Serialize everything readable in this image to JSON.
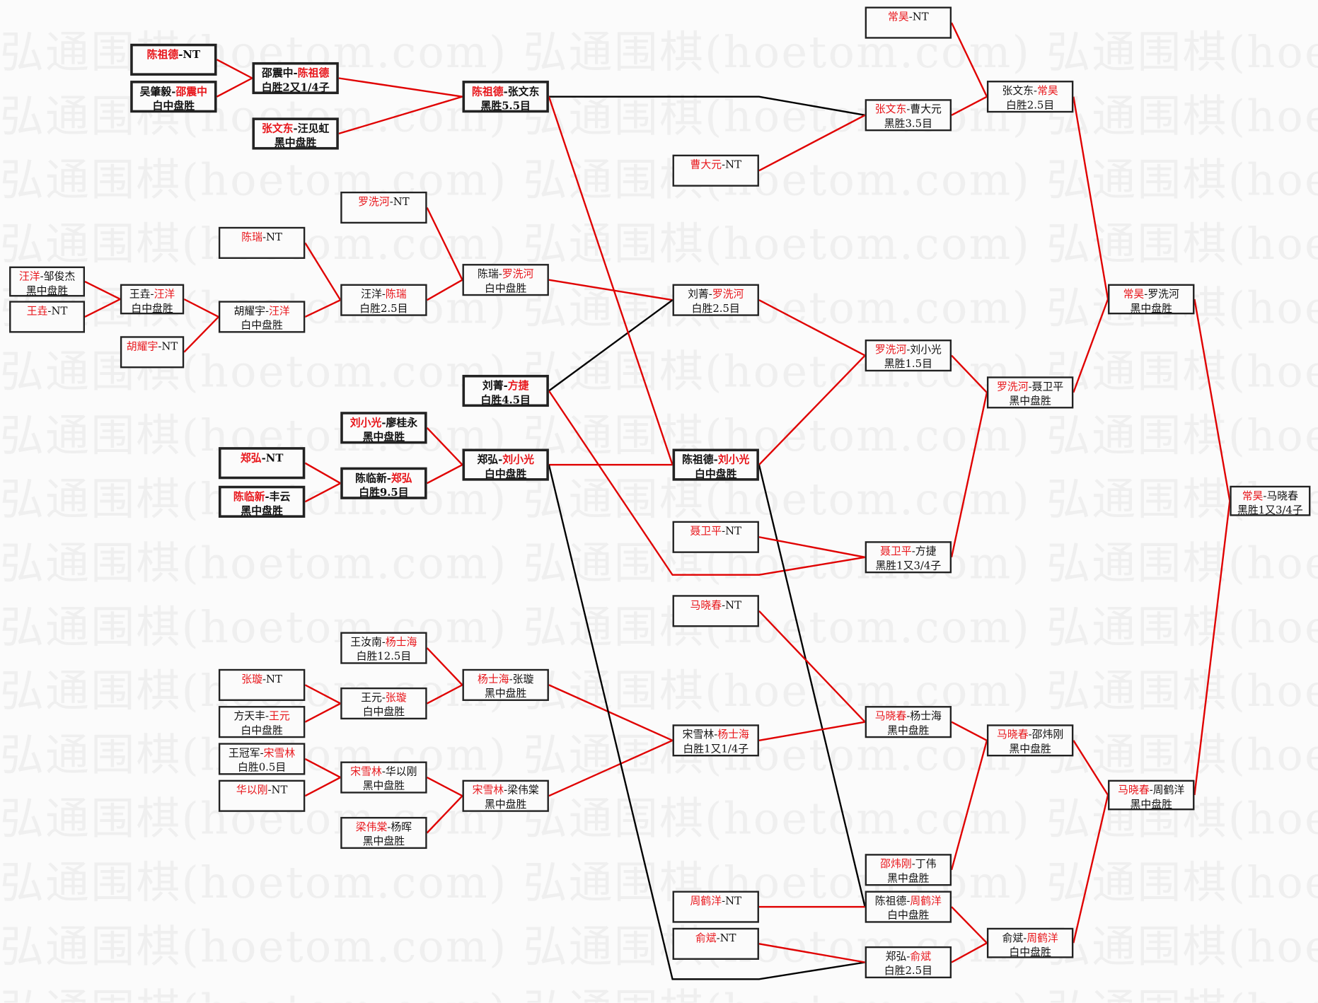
{
  "watermark": "弘通围棋(hoetom.com) 弘通围棋(hoetom.com) 弘通围棋(hoetom.com)",
  "separator": "-",
  "colors": {
    "winner": "#e8161b",
    "winner_path": "#e00000",
    "other_path": "#000000",
    "box_border": "#222222"
  },
  "matches": [
    {
      "a": "汪洋",
      "b": "邹俊杰",
      "win": "a",
      "result": "黑中盘胜"
    },
    {
      "a": "王垚",
      "b": "NT",
      "win": "a",
      "result": ""
    },
    {
      "a": "王垚",
      "b": "汪洋",
      "win": "b",
      "result": "白中盘胜"
    },
    {
      "a": "胡耀宇",
      "b": "NT",
      "win": "a",
      "result": ""
    },
    {
      "a": "陈祖德",
      "b": "NT",
      "win": "a",
      "result": ""
    },
    {
      "a": "吴肇毅",
      "b": "邵震中",
      "win": "b",
      "result": "白中盘胜"
    },
    {
      "a": "陈瑞",
      "b": "NT",
      "win": "a",
      "result": ""
    },
    {
      "a": "胡耀宇",
      "b": "汪洋",
      "win": "b",
      "result": "白中盘胜"
    },
    {
      "a": "郑弘",
      "b": "NT",
      "win": "a",
      "result": ""
    },
    {
      "a": "陈临新",
      "b": "丰云",
      "win": "a",
      "result": "黑中盘胜"
    },
    {
      "a": "张璇",
      "b": "NT",
      "win": "a",
      "result": ""
    },
    {
      "a": "方天丰",
      "b": "王元",
      "win": "b",
      "result": "白中盘胜"
    },
    {
      "a": "王冠军",
      "b": "宋雪林",
      "win": "b",
      "result": "白胜0.5目"
    },
    {
      "a": "华以刚",
      "b": "NT",
      "win": "a",
      "result": ""
    },
    {
      "a": "邵震中",
      "b": "陈祖德",
      "win": "b",
      "result": "白胜2又1/4子"
    },
    {
      "a": "张文东",
      "b": "汪见虹",
      "win": "a",
      "result": "黑中盘胜"
    },
    {
      "a": "罗洗河",
      "b": "NT",
      "win": "a",
      "result": ""
    },
    {
      "a": "汪洋",
      "b": "陈瑞",
      "win": "b",
      "result": "白胜2.5目"
    },
    {
      "a": "刘小光",
      "b": "廖桂永",
      "win": "a",
      "result": "黑中盘胜"
    },
    {
      "a": "陈临新",
      "b": "郑弘",
      "win": "b",
      "result": "白胜9.5目"
    },
    {
      "a": "王汝南",
      "b": "杨士海",
      "win": "b",
      "result": "白胜12.5目"
    },
    {
      "a": "王元",
      "b": "张璇",
      "win": "b",
      "result": "白中盘胜"
    },
    {
      "a": "宋雪林",
      "b": "华以刚",
      "win": "a",
      "result": "黑中盘胜"
    },
    {
      "a": "梁伟棠",
      "b": "杨晖",
      "win": "a",
      "result": "黑中盘胜"
    },
    {
      "a": "陈祖德",
      "b": "张文东",
      "win": "a",
      "result": "黑胜5.5目"
    },
    {
      "a": "陈瑞",
      "b": "罗洗河",
      "win": "b",
      "result": "白中盘胜"
    },
    {
      "a": "刘菁",
      "b": "方捷",
      "win": "b",
      "result": "白胜4.5目"
    },
    {
      "a": "郑弘",
      "b": "刘小光",
      "win": "b",
      "result": "白中盘胜"
    },
    {
      "a": "杨士海",
      "b": "张璇",
      "win": "a",
      "result": "黑中盘胜"
    },
    {
      "a": "宋雪林",
      "b": "梁伟棠",
      "win": "a",
      "result": "黑中盘胜"
    },
    {
      "a": "曹大元",
      "b": "NT",
      "win": "a",
      "result": ""
    },
    {
      "a": "刘菁",
      "b": "罗洗河",
      "win": "b",
      "result": "白胜2.5目"
    },
    {
      "a": "陈祖德",
      "b": "刘小光",
      "win": "b",
      "result": "白中盘胜"
    },
    {
      "a": "聂卫平",
      "b": "NT",
      "win": "a",
      "result": ""
    },
    {
      "a": "马晓春",
      "b": "NT",
      "win": "a",
      "result": ""
    },
    {
      "a": "宋雪林",
      "b": "杨士海",
      "win": "b",
      "result": "白胜1又1/4子"
    },
    {
      "a": "周鹤洋",
      "b": "NT",
      "win": "a",
      "result": ""
    },
    {
      "a": "俞斌",
      "b": "NT",
      "win": "a",
      "result": ""
    },
    {
      "a": "常昊",
      "b": "NT",
      "win": "a",
      "result": ""
    },
    {
      "a": "张文东",
      "b": "曹大元",
      "win": "a",
      "result": "黑胜3.5目"
    },
    {
      "a": "罗洗河",
      "b": "刘小光",
      "win": "a",
      "result": "黑胜1.5目"
    },
    {
      "a": "聂卫平",
      "b": "方捷",
      "win": "a",
      "result": "黑胜1又3/4子"
    },
    {
      "a": "马晓春",
      "b": "杨士海",
      "win": "a",
      "result": "黑中盘胜"
    },
    {
      "a": "邵炜刚",
      "b": "丁伟",
      "win": "a",
      "result": "黑中盘胜"
    },
    {
      "a": "陈祖德",
      "b": "周鹤洋",
      "win": "b",
      "result": "白中盘胜"
    },
    {
      "a": "郑弘",
      "b": "俞斌",
      "win": "b",
      "result": "白胜2.5目"
    },
    {
      "a": "张文东",
      "b": "常昊",
      "win": "b",
      "result": "白胜2.5目"
    },
    {
      "a": "罗洗河",
      "b": "聂卫平",
      "win": "a",
      "result": "黑中盘胜"
    },
    {
      "a": "马晓春",
      "b": "邵炜刚",
      "win": "a",
      "result": "黑中盘胜"
    },
    {
      "a": "俞斌",
      "b": "周鹤洋",
      "win": "b",
      "result": "白中盘胜"
    },
    {
      "a": "常昊",
      "b": "罗洗河",
      "win": "a",
      "result": "黑中盘胜"
    },
    {
      "a": "马晓春",
      "b": "周鹤洋",
      "win": "a",
      "result": "黑中盘胜"
    },
    {
      "a": "常昊",
      "b": "马晓春",
      "win": "a",
      "result": "黑胜1又3/4子"
    }
  ]
}
